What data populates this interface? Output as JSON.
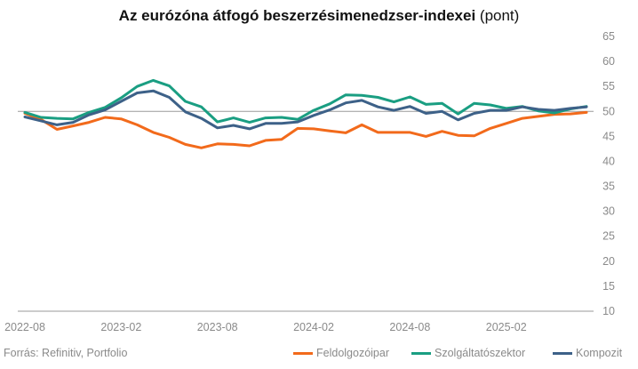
{
  "title_bold": "Az eurózóna átfogó beszerzésimenedzser-indexei",
  "title_normal": "(pont)",
  "source": "Forrás: Refinitiv, Portfolio",
  "colors": {
    "Feldolgozóipar": "#f26a1b",
    "Szolgáltatószektor": "#1a9e82",
    "Kompozit": "#3d6188",
    "axis": "#9a9a9a",
    "grid": "#d9d9d9"
  },
  "chart_data": {
    "type": "line",
    "title": "Az eurózóna átfogó beszerzésimenedzser-indexei (pont)",
    "xlabel": "",
    "ylabel": "",
    "x": [
      "2022-08",
      "2022-09",
      "2022-10",
      "2022-11",
      "2022-12",
      "2023-01",
      "2023-02",
      "2023-03",
      "2023-04",
      "2023-05",
      "2023-06",
      "2023-07",
      "2023-08",
      "2023-09",
      "2023-10",
      "2023-11",
      "2023-12",
      "2024-01",
      "2024-02",
      "2024-03",
      "2024-04",
      "2024-05",
      "2024-06",
      "2024-07",
      "2024-08",
      "2024-09",
      "2024-10",
      "2024-11",
      "2024-12",
      "2025-01",
      "2025-02",
      "2025-03",
      "2025-04",
      "2025-05",
      "2025-06",
      "2025-07"
    ],
    "x_tick_labels": [
      "2022-08",
      "2023-02",
      "2023-08",
      "2024-02",
      "2024-08",
      "2025-02"
    ],
    "ylim": [
      10,
      65
    ],
    "y_ticks": [
      10,
      15,
      20,
      25,
      30,
      35,
      40,
      45,
      50,
      55,
      60,
      65
    ],
    "y_axis_position": "right",
    "grid": false,
    "reference_line": 50,
    "legend_position": "bottom-right",
    "series": [
      {
        "name": "Feldolgozóipar",
        "values": [
          49.6,
          48.4,
          46.4,
          47.1,
          47.8,
          48.8,
          48.5,
          47.3,
          45.8,
          44.8,
          43.4,
          42.7,
          43.5,
          43.4,
          43.1,
          44.2,
          44.4,
          46.6,
          46.5,
          46.1,
          45.7,
          47.3,
          45.8,
          45.8,
          45.8,
          45.0,
          46.0,
          45.2,
          45.1,
          46.6,
          47.6,
          48.6,
          49.0,
          49.4,
          49.5,
          49.8
        ]
      },
      {
        "name": "Szolgáltatószektor",
        "values": [
          49.8,
          48.8,
          48.6,
          48.5,
          49.8,
          50.8,
          52.7,
          55.0,
          56.2,
          55.1,
          52.0,
          50.9,
          47.9,
          48.7,
          47.8,
          48.7,
          48.8,
          48.4,
          50.2,
          51.5,
          53.3,
          53.2,
          52.8,
          51.9,
          52.9,
          51.4,
          51.6,
          49.5,
          51.6,
          51.3,
          50.6,
          51.0,
          50.1,
          49.7,
          50.5,
          51.0
        ]
      },
      {
        "name": "Kompozit",
        "values": [
          48.9,
          48.1,
          47.3,
          47.8,
          49.3,
          50.3,
          52.0,
          53.7,
          54.1,
          52.8,
          49.9,
          48.6,
          46.7,
          47.2,
          46.5,
          47.6,
          47.6,
          47.9,
          49.2,
          50.3,
          51.7,
          52.2,
          50.9,
          50.2,
          51.0,
          49.6,
          50.0,
          48.3,
          49.6,
          50.2,
          50.2,
          50.9,
          50.4,
          50.2,
          50.6,
          50.9
        ]
      }
    ]
  }
}
